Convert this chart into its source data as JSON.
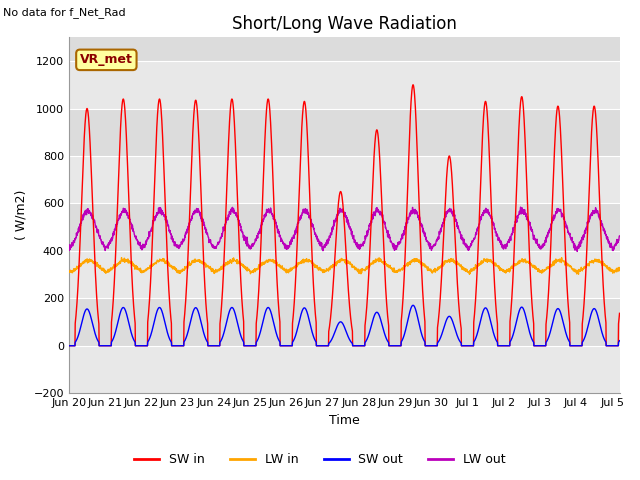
{
  "title": "Short/Long Wave Radiation",
  "no_data_text": "No data for f_Net_Rad",
  "vr_met_label": "VR_met",
  "ylabel": "( W/m2)",
  "xlabel": "Time",
  "ylim": [
    -200,
    1300
  ],
  "yticks": [
    -200,
    0,
    200,
    400,
    600,
    800,
    1000,
    1200
  ],
  "num_days": 15.2,
  "xtick_labels": [
    "Jun 20",
    "Jun 21",
    "Jun 22",
    "Jun 23",
    "Jun 24",
    "Jun 25",
    "Jun 26",
    "Jun 27",
    "Jun 28",
    "Jun 29",
    "Jun 30",
    "Jul 1",
    "Jul 2",
    "Jul 3",
    "Jul 4",
    "Jul 5"
  ],
  "sw_in_color": "#FF0000",
  "lw_in_color": "#FFA500",
  "sw_out_color": "#0000FF",
  "lw_out_color": "#BB00BB",
  "bg_color": "#FFFFFF",
  "plot_bg_color": "#DCDCDC",
  "band_color_light": "#E8E8E8",
  "band_color_dark": "#DCDCDC",
  "grid_color": "#FFFFFF",
  "vr_met_bg": "#FFFFA0",
  "vr_met_border": "#AA6600",
  "legend_colors": [
    "#FF0000",
    "#FFA500",
    "#0000FF",
    "#BB00BB"
  ],
  "legend_labels": [
    "SW in",
    "LW in",
    "SW out",
    "LW out"
  ],
  "title_fontsize": 12,
  "label_fontsize": 9,
  "tick_fontsize": 8
}
